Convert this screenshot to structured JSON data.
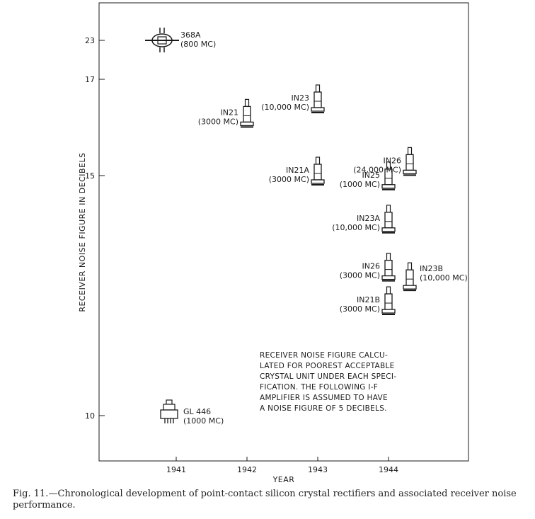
{
  "chart_data": {
    "type": "scatter",
    "xlabel": "YEAR",
    "ylabel": "RECEIVER NOISE FIGURE IN DECIBELS",
    "x_ticks": [
      "1941",
      "1942",
      "1943",
      "1944"
    ],
    "y_ticks": [
      "10",
      "15",
      "17",
      "23"
    ],
    "points": [
      {
        "x": 1940.8,
        "y": 23.0,
        "label": "368A",
        "sublabel": "(800 MC)"
      },
      {
        "x": 1942.0,
        "y": 16.2,
        "label": "IN21",
        "sublabel": "(3000 MC)"
      },
      {
        "x": 1943.0,
        "y": 16.5,
        "label": "IN23",
        "sublabel": "(10,000 MC)"
      },
      {
        "x": 1943.0,
        "y": 15.0,
        "label": "IN21A",
        "sublabel": "(3000 MC)"
      },
      {
        "x": 1944.0,
        "y": 14.9,
        "label": "IN25",
        "sublabel": "(1000 MC)"
      },
      {
        "x": 1944.3,
        "y": 15.2,
        "label": "IN26",
        "sublabel": "(24,000 MC)"
      },
      {
        "x": 1944.0,
        "y": 14.0,
        "label": "IN23A",
        "sublabel": "(10,000 MC)"
      },
      {
        "x": 1944.0,
        "y": 13.0,
        "label": "IN26",
        "sublabel": "(3000 MC)"
      },
      {
        "x": 1944.3,
        "y": 12.8,
        "label": "IN23B",
        "sublabel": "(10,000 MC)"
      },
      {
        "x": 1944.0,
        "y": 12.3,
        "label": "IN21B",
        "sublabel": "(3000 MC)"
      },
      {
        "x": 1940.9,
        "y": 10.0,
        "label": "GL 446",
        "sublabel": "(1000 MC)"
      }
    ],
    "annotation": [
      "RECEIVER NOISE FIGURE CALCU-",
      "LATED FOR POOREST ACCEPTABLE",
      "CRYSTAL UNIT UNDER EACH SPECI-",
      "FICATION. THE FOLLOWING I-F",
      "AMPLIFIER IS ASSUMED TO HAVE",
      "A NOISE FIGURE OF 5 DECIBELS."
    ]
  },
  "caption": "Fig. 11.—Chronological development of point-contact silicon crystal rectifiers and associated receiver noise performance."
}
